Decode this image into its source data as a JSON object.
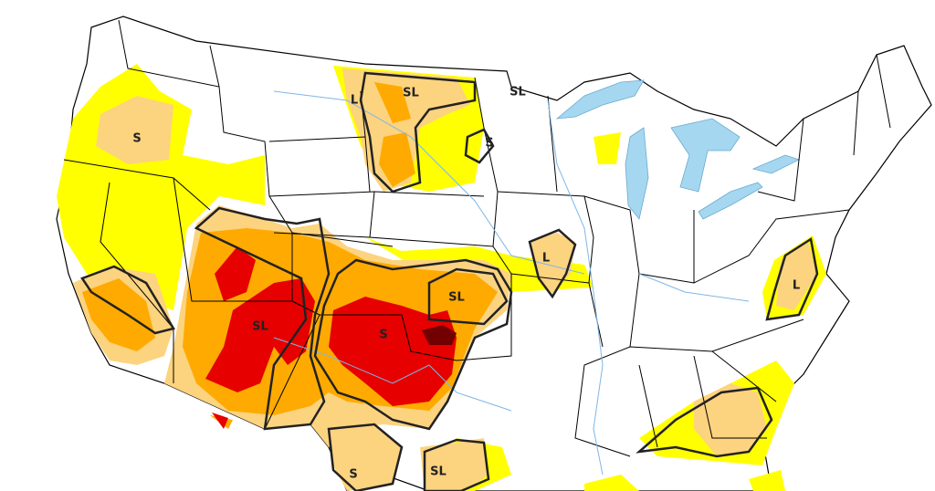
{
  "labels": [
    "S",
    "SL",
    "L",
    "SL",
    "S",
    "SL",
    "S",
    "SL",
    "L",
    "L",
    "S",
    "SL"
  ]
}
